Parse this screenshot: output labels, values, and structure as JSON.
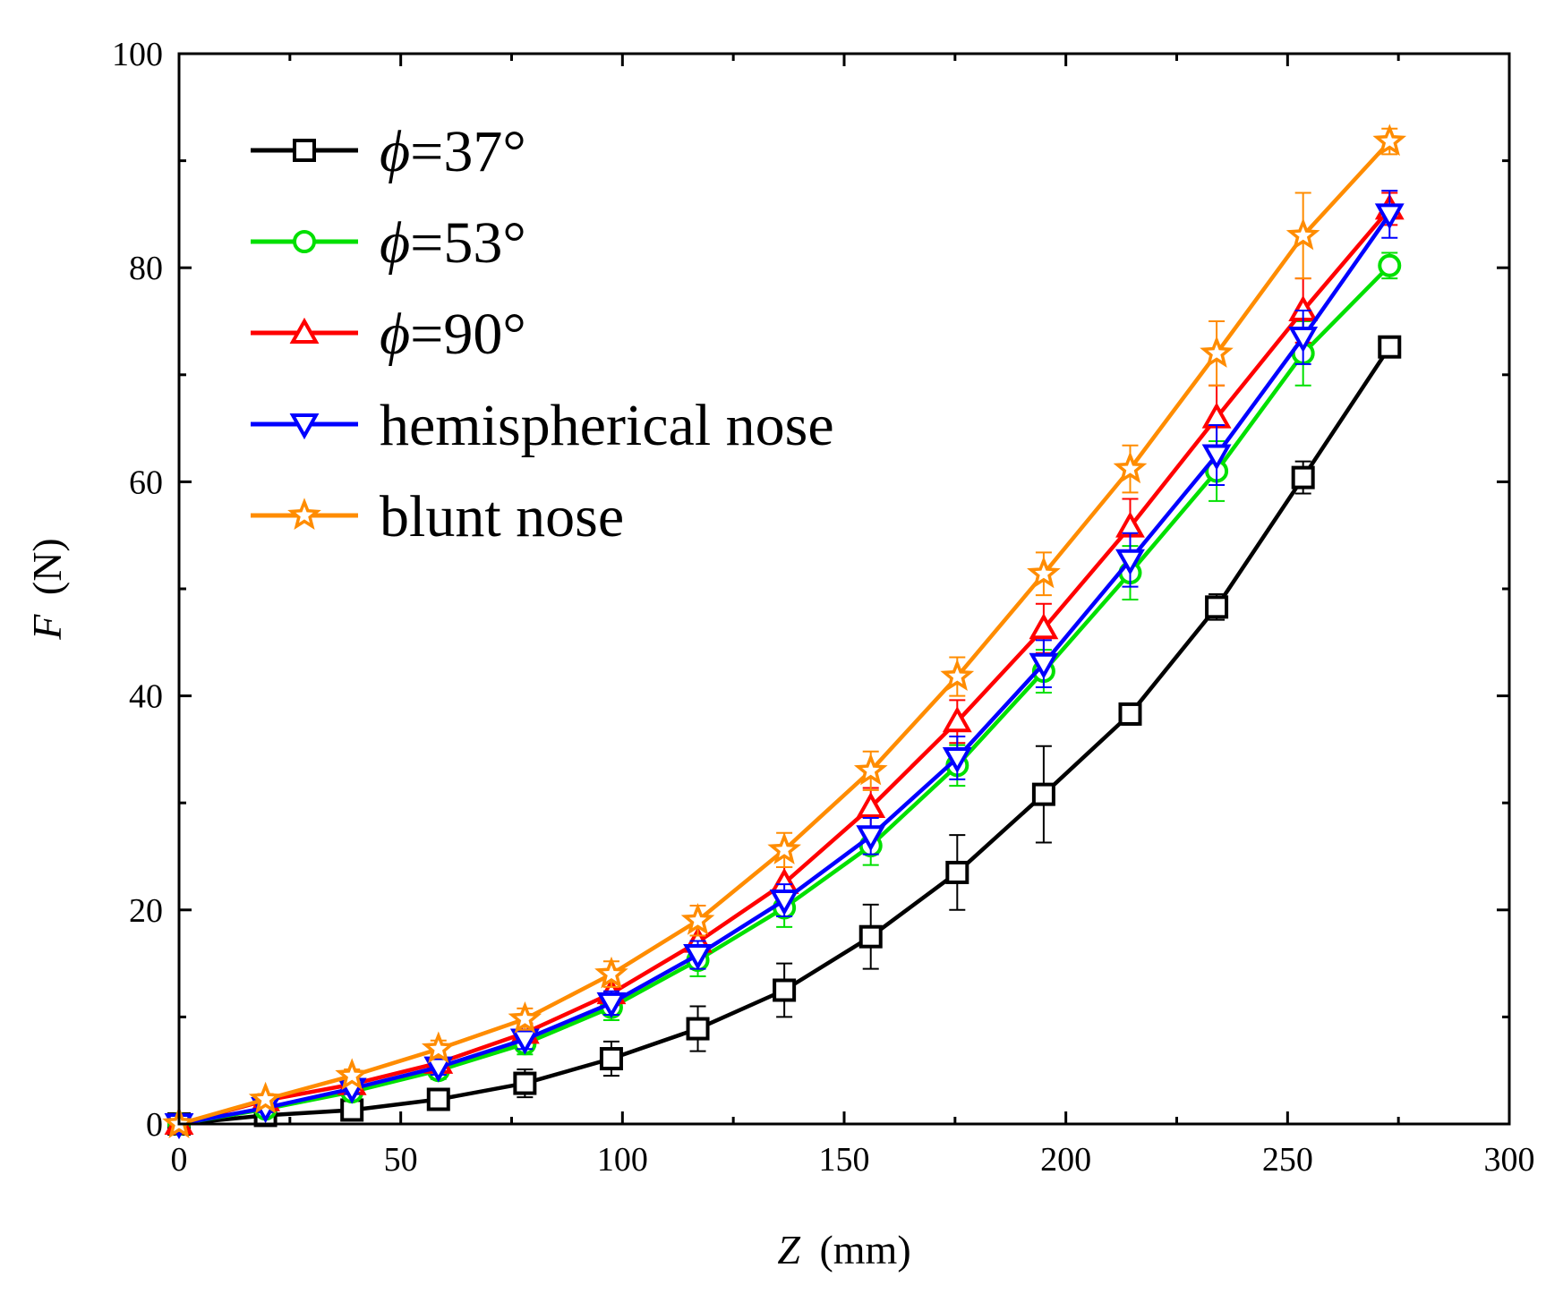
{
  "chart_data": {
    "type": "line",
    "title": "",
    "xlabel": {
      "var": "Z",
      "unit": "(mm)"
    },
    "ylabel": {
      "var": "F",
      "unit": "(N)"
    },
    "xlim": [
      0,
      300
    ],
    "ylim": [
      0,
      100
    ],
    "xticks": [
      "0",
      "50",
      "100",
      "150",
      "200",
      "250",
      "300"
    ],
    "yticks": [
      "0",
      "20",
      "40",
      "60",
      "80",
      "100"
    ],
    "x": [
      0,
      19.5,
      39,
      58.5,
      78,
      97.5,
      117,
      136.5,
      156,
      175.5,
      195,
      214.5,
      234,
      253.5,
      273
    ],
    "legend_position": "top-left",
    "series": [
      {
        "name": "=37°",
        "symbol": "ϕ",
        "color": "#000000",
        "marker": "square",
        "values": [
          0,
          0.8,
          1.3,
          2.3,
          3.8,
          6.1,
          8.9,
          12.5,
          17.5,
          23.5,
          30.8,
          38.3,
          48.3,
          60.4,
          72.6
        ],
        "errors": [
          0,
          0.5,
          0.8,
          1.0,
          1.3,
          1.6,
          2.1,
          2.5,
          3.0,
          3.5,
          4.5,
          1.0,
          1.2,
          1.5,
          0.8
        ]
      },
      {
        "name": "=53°",
        "symbol": "ϕ",
        "color": "#00e000",
        "marker": "circle",
        "values": [
          0,
          1.4,
          3.0,
          5.0,
          7.5,
          10.9,
          15.3,
          20.2,
          26.0,
          33.5,
          42.3,
          51.5,
          61.0,
          72.0,
          80.2
        ],
        "errors": [
          0,
          0.4,
          0.6,
          0.8,
          1.0,
          1.2,
          1.5,
          1.8,
          1.8,
          1.9,
          2.0,
          2.5,
          2.8,
          3.0,
          1.2
        ]
      },
      {
        "name": "=90°",
        "symbol": "ϕ",
        "color": "#ff0000",
        "marker": "triangle-up",
        "values": [
          0,
          2.2,
          3.7,
          5.7,
          8.5,
          12.2,
          17.0,
          22.5,
          29.6,
          37.6,
          46.3,
          55.8,
          66.0,
          76.0,
          85.5
        ],
        "errors": [
          0,
          0.4,
          0.6,
          0.7,
          0.9,
          1.1,
          1.3,
          1.5,
          1.8,
          2.0,
          2.3,
          2.6,
          3.0,
          3.0,
          1.5
        ]
      },
      {
        "name": "hemispherical nose",
        "symbol": "",
        "color": "#0000ff",
        "marker": "triangle-down",
        "values": [
          0,
          1.5,
          3.3,
          5.3,
          7.9,
          11.3,
          15.8,
          20.9,
          26.9,
          34.2,
          43.0,
          52.7,
          62.5,
          73.5,
          85.0
        ],
        "errors": [
          0,
          0.4,
          0.5,
          0.7,
          0.9,
          1.1,
          1.3,
          1.5,
          1.7,
          2.0,
          2.2,
          2.5,
          2.8,
          2.5,
          2.2
        ]
      },
      {
        "name": "blunt nose",
        "symbol": "",
        "color": "#ff8c00",
        "marker": "star",
        "values": [
          0,
          2.3,
          4.5,
          7.0,
          9.8,
          14.0,
          19.0,
          25.6,
          33.0,
          41.8,
          51.4,
          61.2,
          72.0,
          83.0,
          91.8
        ],
        "errors": [
          0,
          0.5,
          0.6,
          0.8,
          1.0,
          1.2,
          1.4,
          1.6,
          1.8,
          1.8,
          2.0,
          2.2,
          3.0,
          4.0,
          1.2
        ]
      }
    ]
  }
}
